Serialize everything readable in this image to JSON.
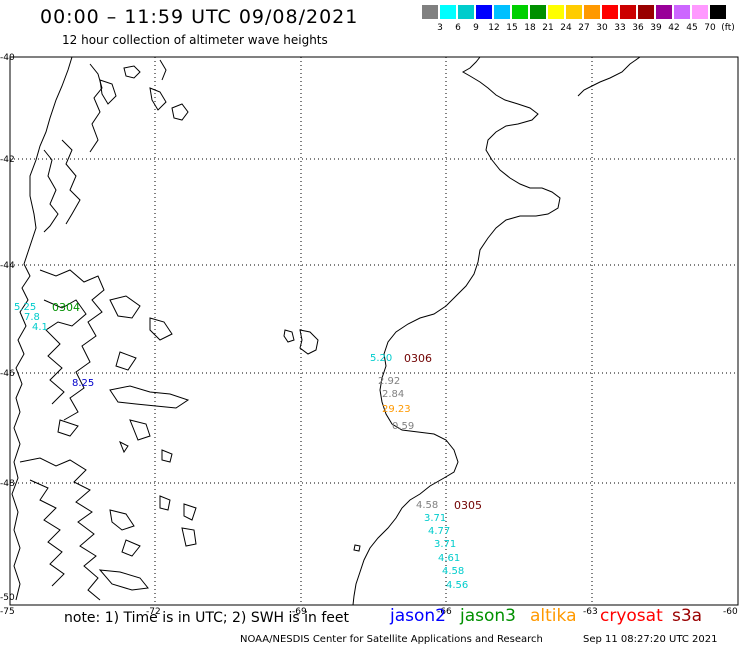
{
  "header": {
    "title": "00:00 – 11:59 UTC 09/08/2021",
    "subtitle": "12 hour collection of altimeter wave heights"
  },
  "colorbar": {
    "colors": [
      "#808080",
      "#00ffff",
      "#00cccc",
      "#0000ff",
      "#00c0ff",
      "#00d000",
      "#009000",
      "#ffff00",
      "#ffcc00",
      "#ff9900",
      "#ff0000",
      "#cc0000",
      "#990000",
      "#990099",
      "#cc66ff",
      "#ff99ff",
      "#000000"
    ],
    "labels": [
      "3",
      "6",
      "9",
      "12",
      "15",
      "18",
      "21",
      "24",
      "27",
      "30",
      "33",
      "36",
      "39",
      "42",
      "45",
      "70",
      "(ft)"
    ]
  },
  "axes": {
    "lat_labels": [
      "-40",
      "-42",
      "-44",
      "-46",
      "-48",
      "-50"
    ],
    "lon_labels": [
      "-75",
      "-72",
      "-69",
      "-66",
      "-63",
      "-60"
    ]
  },
  "observations": [
    {
      "text": "5.20",
      "color": "#00cccc"
    },
    {
      "text": "2.92",
      "color": "#808080"
    },
    {
      "text": "2.84",
      "color": "#808080"
    },
    {
      "text": "29.23",
      "color": "#ff9900"
    },
    {
      "text": "0.59",
      "color": "#808080"
    },
    {
      "text": "4.58",
      "color": "#808080"
    },
    {
      "text": "3.71",
      "color": "#00cccc"
    },
    {
      "text": "4.77",
      "color": "#00cccc"
    },
    {
      "text": "3.71",
      "color": "#00cccc"
    },
    {
      "text": "4.61",
      "color": "#00cccc"
    },
    {
      "text": "4.58",
      "color": "#00cccc"
    },
    {
      "text": "4.56",
      "color": "#00cccc"
    },
    {
      "text": "5.25",
      "color": "#00cccc"
    },
    {
      "text": "7.8",
      "color": "#00cccc"
    },
    {
      "text": "4.1",
      "color": "#00cccc"
    },
    {
      "text": "8.25",
      "color": "#0000cc"
    }
  ],
  "passes": [
    {
      "text": "0306"
    },
    {
      "text": "0305"
    },
    {
      "text": "0304"
    }
  ],
  "footer": {
    "note": "note: 1) Time is in UTC; 2) SWH is in feet",
    "satellites": [
      {
        "name": "jason2",
        "color": "#0000ff"
      },
      {
        "name": "jason3",
        "color": "#009000"
      },
      {
        "name": "altika",
        "color": "#ff9900"
      },
      {
        "name": "cryosat",
        "color": "#ff0000"
      },
      {
        "name": "s3a",
        "color": "#990000"
      }
    ],
    "credit": "NOAA/NESDIS Center for Satellite Applications and Research",
    "timestamp": "Sep 11 08:27:20 UTC 2021"
  }
}
